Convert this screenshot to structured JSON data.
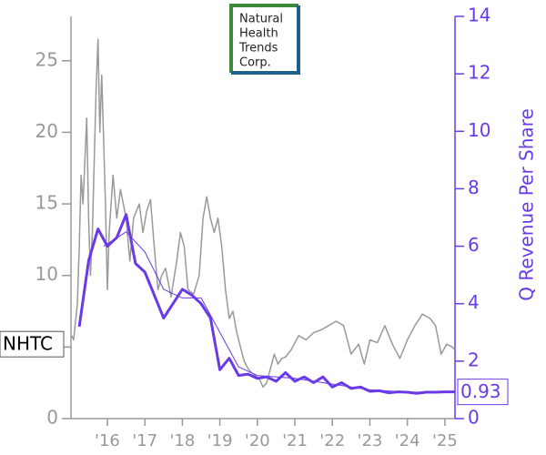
{
  "chart_data": {
    "type": "line",
    "logo": [
      "Natural",
      "Health",
      "Trends",
      "Corp."
    ],
    "xlim": [
      2015.03,
      2025.27
    ],
    "xticks": [
      {
        "value": 2016,
        "label": "'16"
      },
      {
        "value": 2017,
        "label": "'17"
      },
      {
        "value": 2018,
        "label": "'18"
      },
      {
        "value": 2019,
        "label": "'19"
      },
      {
        "value": 2020,
        "label": "'20"
      },
      {
        "value": 2021,
        "label": "'21"
      },
      {
        "value": 2022,
        "label": "'22"
      },
      {
        "value": 2023,
        "label": "'23"
      },
      {
        "value": 2024,
        "label": "'24"
      },
      {
        "value": 2025,
        "label": "'25"
      }
    ],
    "ylim": [
      0,
      28.1
    ],
    "yticks": [
      0,
      5,
      10,
      15,
      20,
      25
    ],
    "y2lim": [
      0,
      14
    ],
    "y2ticks": [
      0,
      2,
      4,
      6,
      8,
      10,
      12,
      14
    ],
    "y2label": "Q Revenue Per Share",
    "axis_color": "#999999",
    "y2_color": "#6a3ae8",
    "series": [
      {
        "color": "#999999",
        "width": 1.5,
        "x": [
          2015.05,
          2015.1,
          2015.2,
          2015.25,
          2015.3,
          2015.35,
          2015.45,
          2015.5,
          2015.55,
          2015.6,
          2015.7,
          2015.75,
          2015.8,
          2015.85,
          2015.95,
          2016.0,
          2016.05,
          2016.15,
          2016.25,
          2016.35,
          2016.5,
          2016.6,
          2016.7,
          2016.85,
          2016.95,
          2017.05,
          2017.15,
          2017.25,
          2017.35,
          2017.45,
          2017.55,
          2017.7,
          2017.85,
          2017.95,
          2018.05,
          2018.15,
          2018.3,
          2018.45,
          2018.55,
          2018.65,
          2018.75,
          2018.85,
          2018.95,
          2019.05,
          2019.15,
          2019.25,
          2019.35,
          2019.45,
          2019.55,
          2019.65,
          2019.75,
          2019.85,
          2019.95,
          2020.05,
          2020.15,
          2020.25,
          2020.35,
          2020.45,
          2020.55,
          2020.65,
          2020.75,
          2020.9,
          2021.1,
          2021.3,
          2021.5,
          2021.7,
          2021.9,
          2022.1,
          2022.3,
          2022.5,
          2022.7,
          2022.85,
          2023.0,
          2023.2,
          2023.4,
          2023.6,
          2023.8,
          2024.0,
          2024.2,
          2024.4,
          2024.6,
          2024.75,
          2024.9,
          2025.05,
          2025.2,
          2025.27
        ],
        "values": [
          5.8,
          5.5,
          8,
          12,
          17,
          15,
          21,
          14,
          10,
          13,
          23,
          26.5,
          20,
          24,
          15,
          9,
          13,
          17,
          14,
          16,
          14,
          11,
          14,
          15,
          13,
          14.5,
          15.3,
          12,
          9,
          10,
          10.5,
          8.5,
          11,
          13,
          12,
          9,
          8.7,
          10,
          14,
          15.5,
          14,
          13,
          14,
          12,
          9,
          7,
          7.5,
          6,
          5,
          4,
          3.5,
          3.2,
          3,
          2.8,
          2.2,
          2.5,
          3.5,
          4.5,
          3.8,
          4.2,
          4.3,
          4.8,
          5.8,
          5.5,
          6,
          6.2,
          6.5,
          6.8,
          6.5,
          4.5,
          5.2,
          3.8,
          5.5,
          5.3,
          6.5,
          5.2,
          4.2,
          5.5,
          6.5,
          7.3,
          7,
          6.5,
          4.5,
          5.2,
          5,
          4.8
        ]
      },
      {
        "color": "#6a3ae8",
        "width": 1,
        "axis": "y2",
        "x": [
          2015.9,
          2016.5,
          2017.0,
          2017.5,
          2018.0,
          2018.5,
          2019.0,
          2019.5,
          2020.0,
          2021.0,
          2022.0,
          2023.0,
          2024.0,
          2025.27
        ],
        "values": [
          6.0,
          6.5,
          5.8,
          4.5,
          4.2,
          4.2,
          3.0,
          1.8,
          1.5,
          1.4,
          1.2,
          1.0,
          0.92,
          0.93
        ]
      },
      {
        "color": "#6a3ae8",
        "width": 3,
        "axis": "y2",
        "x": [
          2015.25,
          2015.5,
          2015.75,
          2016.0,
          2016.25,
          2016.5,
          2016.75,
          2017.0,
          2017.25,
          2017.5,
          2017.75,
          2018.0,
          2018.25,
          2018.5,
          2018.75,
          2019.0,
          2019.25,
          2019.5,
          2019.75,
          2020.0,
          2020.25,
          2020.5,
          2020.75,
          2021.0,
          2021.25,
          2021.5,
          2021.75,
          2022.0,
          2022.25,
          2022.5,
          2022.75,
          2023.0,
          2023.25,
          2023.5,
          2023.75,
          2024.0,
          2024.25,
          2024.5,
          2024.75,
          2025.0,
          2025.27
        ],
        "values": [
          3.2,
          5.5,
          6.6,
          6.0,
          6.3,
          7.1,
          5.4,
          5.1,
          4.3,
          3.5,
          4.0,
          4.5,
          4.3,
          4.0,
          3.5,
          1.7,
          2.1,
          1.5,
          1.55,
          1.4,
          1.45,
          1.3,
          1.6,
          1.3,
          1.45,
          1.25,
          1.45,
          1.1,
          1.25,
          1.05,
          1.1,
          0.95,
          0.97,
          0.9,
          0.93,
          0.92,
          0.88,
          0.92,
          0.92,
          0.93,
          0.93
        ]
      }
    ],
    "annotations": [
      {
        "text": "NHTC",
        "value": 5.2,
        "axis": "y"
      },
      {
        "text": "0.93",
        "value": 0.93,
        "axis": "y2"
      }
    ]
  }
}
